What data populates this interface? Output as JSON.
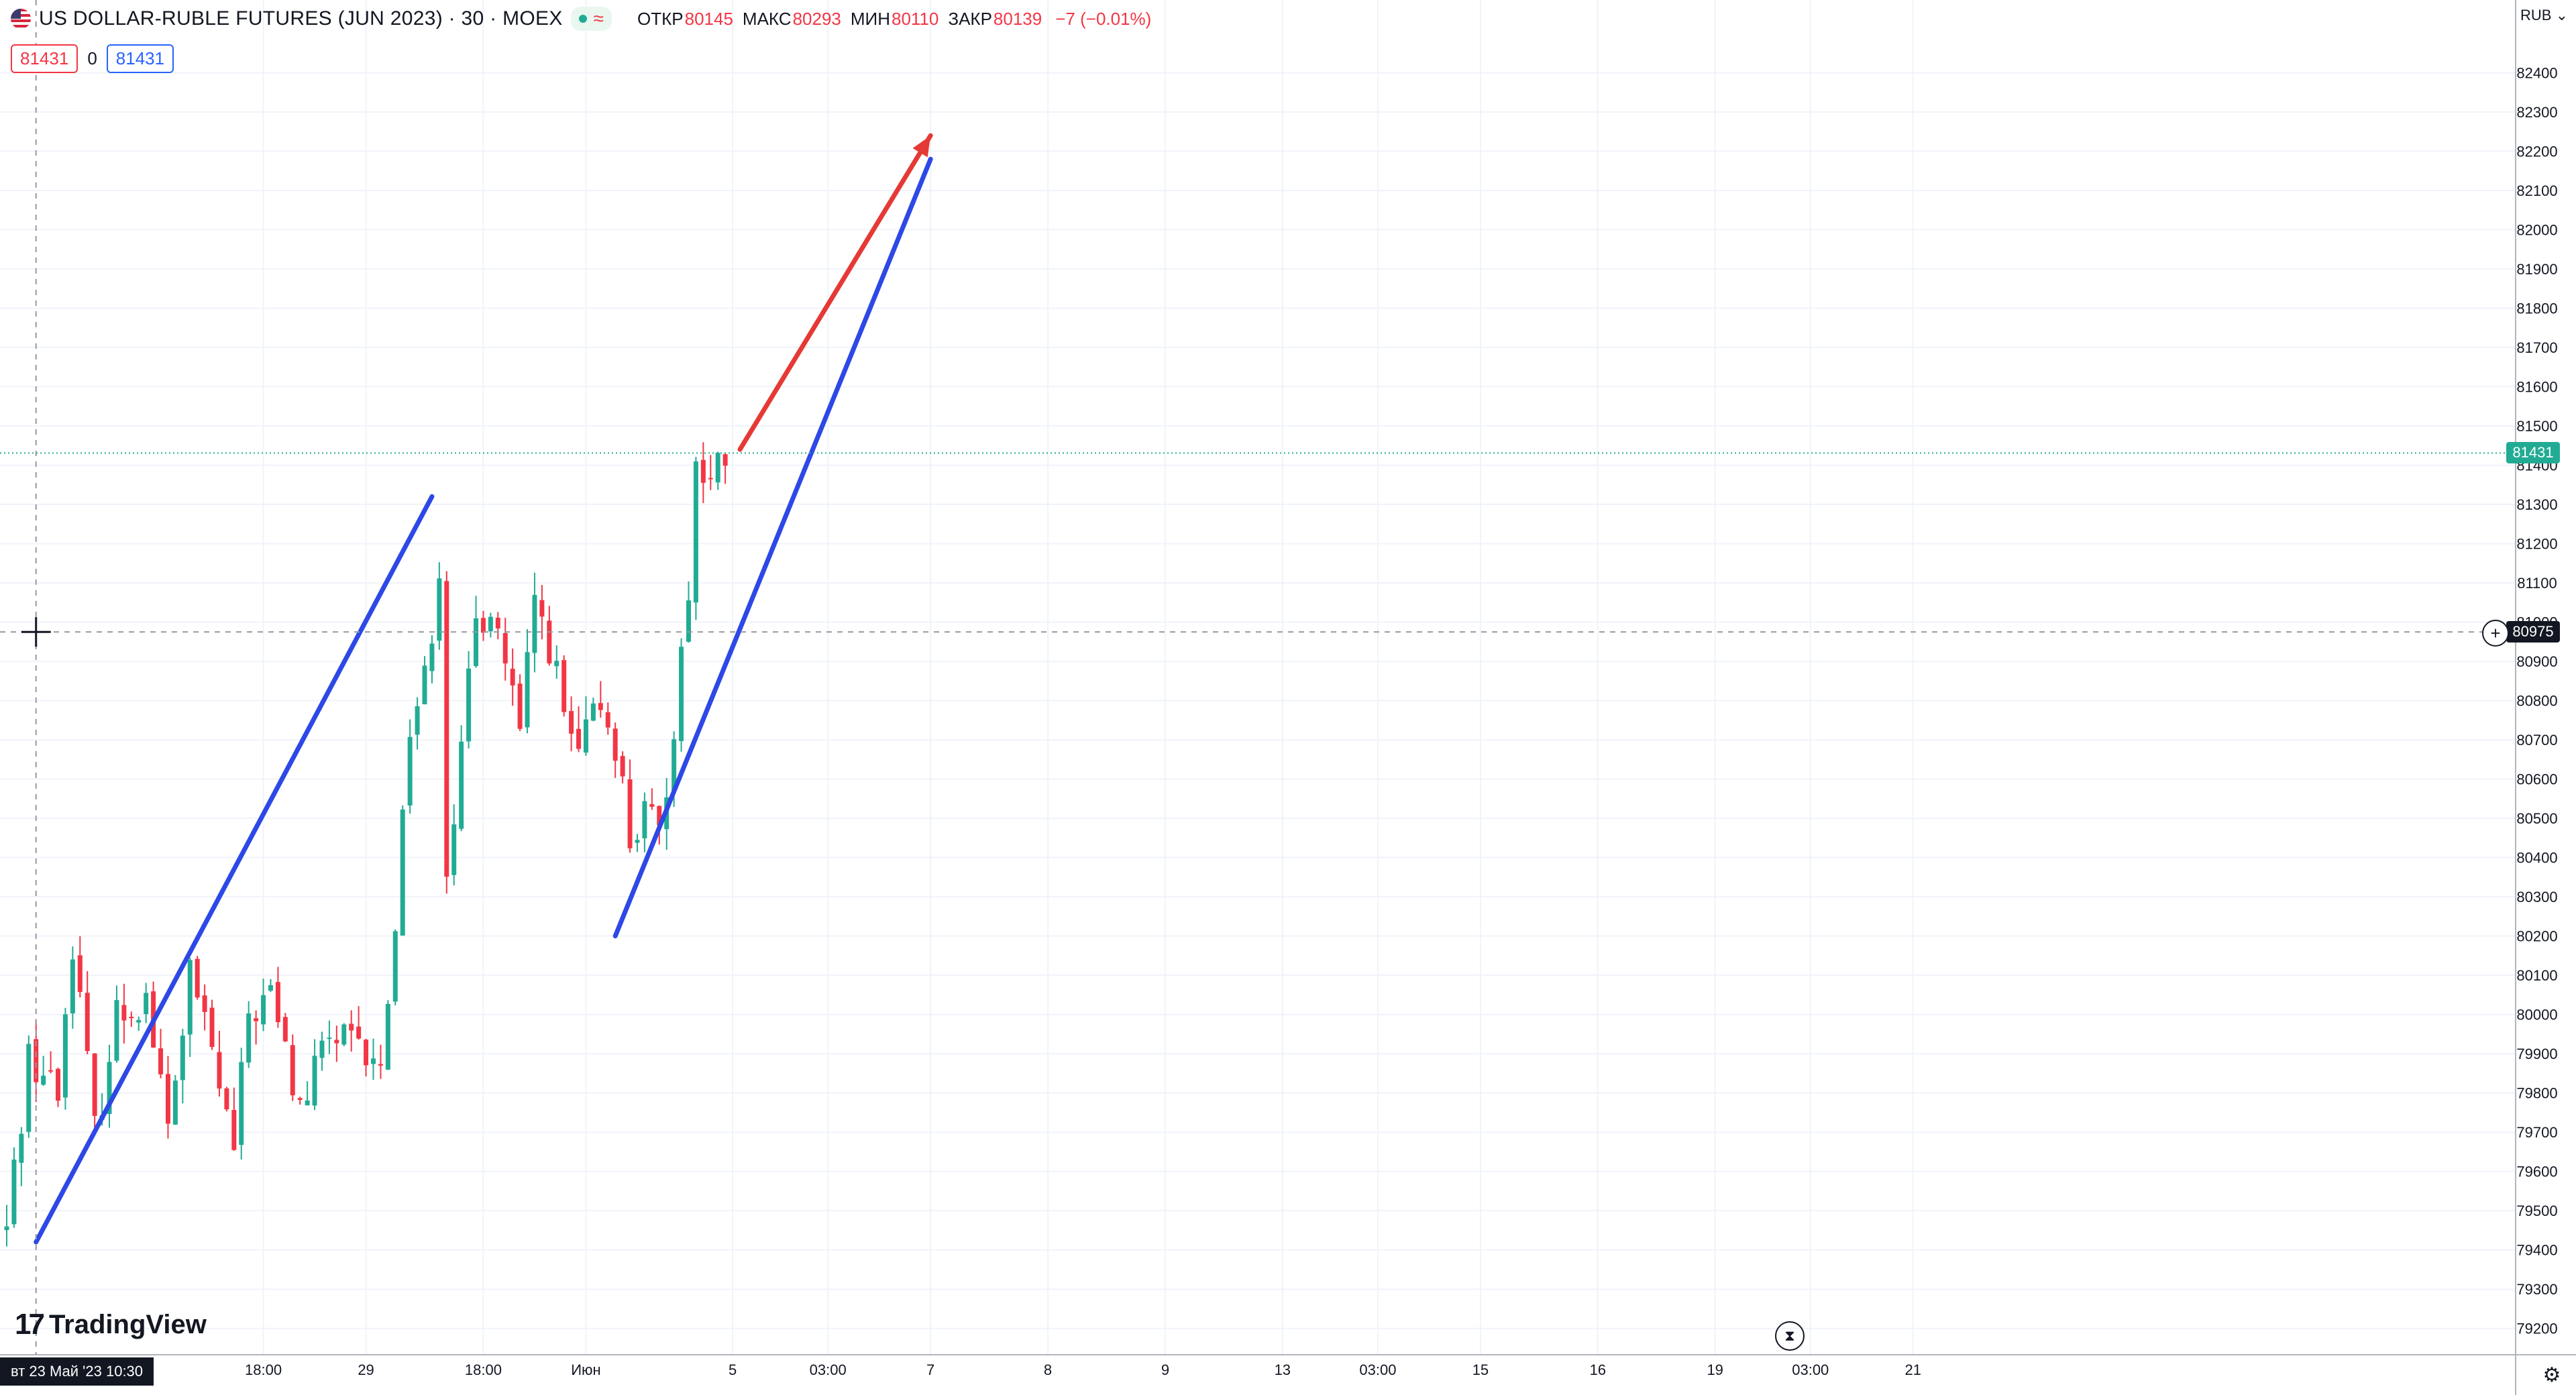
{
  "header": {
    "symbol": "US DOLLAR-RUBLE FUTURES (JUN 2023) · 30 · MOEX",
    "status_sign": "≈",
    "ohlc": [
      {
        "key": "ОТКР",
        "value": "80145"
      },
      {
        "key": "МАКС",
        "value": "80293"
      },
      {
        "key": "МИН",
        "value": "80110"
      },
      {
        "key": "ЗАКР",
        "value": "80139"
      }
    ],
    "change": "−7 (−0.01%)",
    "bid": "81431",
    "spread": "0",
    "ask": "81431"
  },
  "axis": {
    "currency": "RUB",
    "last_price_label": "81431",
    "crosshair_price_label": "80975"
  },
  "crosshair_time": "вт 23 Май '23   10:30",
  "logo_text": "TradingView",
  "colors": {
    "up": "#22ab94",
    "down": "#f23645",
    "trend_blue": "#2d48e6",
    "arrow_red": "#e53935"
  },
  "icons": [
    "us-flag-icon",
    "status-dot-icon",
    "plus-circle-icon",
    "hourglass-icon",
    "settings-icon",
    "tradingview-logo-icon",
    "crosshair-icon"
  ],
  "chart_data": {
    "type": "candlestick",
    "title": "US DOLLAR-RUBLE FUTURES (JUN 2023) · 30 · MOEX",
    "ylabel": "RUB",
    "ylim": [
      79150,
      82500
    ],
    "y_ticks": [
      79200,
      79300,
      79400,
      79500,
      79600,
      79700,
      79800,
      79900,
      80000,
      80100,
      80200,
      80300,
      80400,
      80500,
      80600,
      80700,
      80800,
      80900,
      81000,
      81100,
      81200,
      81300,
      81400,
      81500,
      81600,
      81700,
      81800,
      81900,
      82000,
      82100,
      82200,
      82300,
      82400
    ],
    "x_ticks": [
      {
        "label": "18:00",
        "bar": 35
      },
      {
        "label": "29",
        "bar": 49
      },
      {
        "label": "18:00",
        "bar": 65
      },
      {
        "label": "Июн",
        "bar": 79
      },
      {
        "label": "5",
        "bar": 99
      },
      {
        "label": "03:00",
        "bar": 112
      },
      {
        "label": "7",
        "bar": 126
      },
      {
        "label": "8",
        "bar": 142
      },
      {
        "label": "9",
        "bar": 158
      },
      {
        "label": "13",
        "bar": 174
      },
      {
        "label": "03:00",
        "bar": 187
      },
      {
        "label": "15",
        "bar": 201
      },
      {
        "label": "16",
        "bar": 217
      },
      {
        "label": "19",
        "bar": 233
      },
      {
        "label": "03:00",
        "bar": 246
      },
      {
        "label": "21",
        "bar": 260
      }
    ],
    "last_price": 81431,
    "crosshair_price": 80975,
    "grid": true,
    "anchors": [
      {
        "bar": 0,
        "price": 79450
      },
      {
        "bar": 3,
        "price": 79900
      },
      {
        "bar": 7,
        "price": 79800
      },
      {
        "bar": 9,
        "price": 80200
      },
      {
        "bar": 12,
        "price": 79700
      },
      {
        "bar": 15,
        "price": 80000
      },
      {
        "bar": 19,
        "price": 80050
      },
      {
        "bar": 22,
        "price": 79700
      },
      {
        "bar": 25,
        "price": 80100
      },
      {
        "bar": 28,
        "price": 79900
      },
      {
        "bar": 31,
        "price": 79650
      },
      {
        "bar": 33,
        "price": 80000
      },
      {
        "bar": 36,
        "price": 80050
      },
      {
        "bar": 40,
        "price": 79750
      },
      {
        "bar": 44,
        "price": 79950
      },
      {
        "bar": 48,
        "price": 79900
      },
      {
        "bar": 51,
        "price": 79850
      },
      {
        "bar": 53,
        "price": 80250
      },
      {
        "bar": 55,
        "price": 80750
      },
      {
        "bar": 57,
        "price": 80850
      },
      {
        "bar": 59,
        "price": 81150
      },
      {
        "bar": 60,
        "price": 80400
      },
      {
        "bar": 62,
        "price": 80650
      },
      {
        "bar": 64,
        "price": 81000
      },
      {
        "bar": 66,
        "price": 81050
      },
      {
        "bar": 68,
        "price": 80900
      },
      {
        "bar": 70,
        "price": 80700
      },
      {
        "bar": 72,
        "price": 81050
      },
      {
        "bar": 74,
        "price": 80950
      },
      {
        "bar": 76,
        "price": 80750
      },
      {
        "bar": 78,
        "price": 80650
      },
      {
        "bar": 81,
        "price": 80800
      },
      {
        "bar": 83,
        "price": 80700
      },
      {
        "bar": 85,
        "price": 80450
      },
      {
        "bar": 87,
        "price": 80500
      },
      {
        "bar": 89,
        "price": 80450
      },
      {
        "bar": 91,
        "price": 80750
      },
      {
        "bar": 93,
        "price": 81100
      },
      {
        "bar": 94,
        "price": 81400
      },
      {
        "bar": 96,
        "price": 81350
      },
      {
        "bar": 98,
        "price": 81420
      },
      {
        "bar": 99,
        "price": 81431
      }
    ],
    "drawings": [
      {
        "type": "trend_line",
        "color": "blue",
        "from": {
          "bar": 4,
          "price": 79420
        },
        "to": {
          "bar": 58,
          "price": 81320
        }
      },
      {
        "type": "trend_line",
        "color": "blue",
        "from": {
          "bar": 83,
          "price": 80200
        },
        "to": {
          "bar": 126,
          "price": 82180
        }
      },
      {
        "type": "arrow",
        "color": "red",
        "from": {
          "bar": 100,
          "price": 81440
        },
        "to": {
          "bar": 126,
          "price": 82240
        }
      }
    ]
  }
}
